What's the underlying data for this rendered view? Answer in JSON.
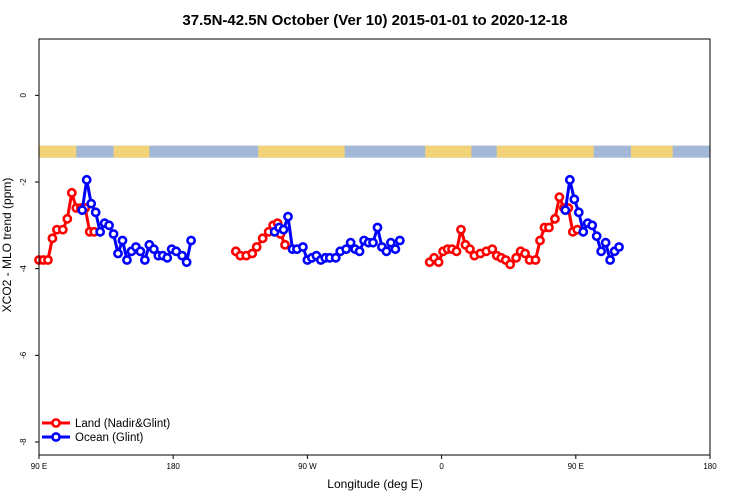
{
  "chart_data": {
    "type": "line",
    "title": "37.5N-42.5N October (Ver 10)   2015-01-01 to 2020-12-18",
    "xlabel": "Longitude (deg E)",
    "ylabel": "XCO2 - MLO trend (ppm)",
    "xlim": [
      90,
      540
    ],
    "ylim": [
      -8.3,
      1.3
    ],
    "x_ticks": [
      {
        "value": 90,
        "label": "90 E"
      },
      {
        "value": 180,
        "label": "180"
      },
      {
        "value": 270,
        "label": "90 W"
      },
      {
        "value": 360,
        "label": "0"
      },
      {
        "value": 450,
        "label": "90 E"
      },
      {
        "value": 540,
        "label": "180"
      }
    ],
    "y_ticks": [
      {
        "value": 0,
        "label": "0"
      },
      {
        "value": -2,
        "label": "-2"
      },
      {
        "value": -4,
        "label": "-4"
      },
      {
        "value": -6,
        "label": "-6"
      },
      {
        "value": -8,
        "label": "-8"
      }
    ],
    "land_band": {
      "y": -1.3,
      "land_color": "#f2d37a",
      "ocean_color": "#a3b7d6",
      "land_segments": [
        [
          90,
          115
        ],
        [
          140,
          164
        ],
        [
          237,
          295
        ],
        [
          349,
          380
        ],
        [
          397,
          462
        ],
        [
          487,
          515
        ]
      ]
    },
    "legend_position": "bottom-left",
    "series": [
      {
        "name": "Land (Nadir&Glint)",
        "color": "#ff0000",
        "segments": [
          [
            [
              90,
              -3.8
            ],
            [
              93,
              -3.8
            ],
            [
              96,
              -3.8
            ],
            [
              99,
              -3.3
            ],
            [
              102,
              -3.1
            ],
            [
              106,
              -3.1
            ],
            [
              109,
              -2.85
            ],
            [
              112,
              -2.25
            ],
            [
              115,
              -2.6
            ],
            [
              118,
              -2.6
            ],
            [
              121,
              -2.6
            ],
            [
              124,
              -3.15
            ],
            [
              127,
              -3.15
            ]
          ],
          [
            [
              222,
              -3.6
            ],
            [
              225,
              -3.7
            ],
            [
              229,
              -3.7
            ],
            [
              233,
              -3.65
            ],
            [
              236,
              -3.5
            ],
            [
              240,
              -3.3
            ],
            [
              244,
              -3.15
            ],
            [
              247,
              -3.0
            ],
            [
              250,
              -2.95
            ],
            [
              252,
              -3.2
            ],
            [
              255,
              -3.45
            ]
          ],
          [
            [
              352,
              -3.85
            ],
            [
              355,
              -3.75
            ],
            [
              358,
              -3.85
            ],
            [
              361,
              -3.6
            ],
            [
              364,
              -3.55
            ],
            [
              367,
              -3.55
            ],
            [
              370,
              -3.6
            ],
            [
              373,
              -3.1
            ],
            [
              376,
              -3.45
            ],
            [
              379,
              -3.55
            ],
            [
              382,
              -3.7
            ],
            [
              386,
              -3.65
            ],
            [
              390,
              -3.6
            ],
            [
              394,
              -3.55
            ],
            [
              397,
              -3.7
            ],
            [
              400,
              -3.75
            ],
            [
              403,
              -3.8
            ],
            [
              406,
              -3.9
            ],
            [
              410,
              -3.75
            ],
            [
              413,
              -3.6
            ],
            [
              416,
              -3.65
            ],
            [
              419,
              -3.8
            ],
            [
              423,
              -3.8
            ],
            [
              426,
              -3.35
            ],
            [
              429,
              -3.05
            ],
            [
              432,
              -3.05
            ],
            [
              436,
              -2.85
            ],
            [
              439,
              -2.35
            ],
            [
              442,
              -2.6
            ],
            [
              445,
              -2.6
            ],
            [
              448,
              -3.15
            ],
            [
              451,
              -3.1
            ]
          ]
        ]
      },
      {
        "name": "Ocean (Glint)",
        "color": "#0000ff",
        "segments": [
          [
            [
              119,
              -2.65
            ],
            [
              122,
              -1.95
            ],
            [
              125,
              -2.5
            ],
            [
              128,
              -2.7
            ],
            [
              131,
              -3.15
            ],
            [
              134,
              -2.95
            ],
            [
              137,
              -3.0
            ],
            [
              140,
              -3.2
            ],
            [
              143,
              -3.65
            ],
            [
              146,
              -3.35
            ],
            [
              149,
              -3.8
            ],
            [
              152,
              -3.6
            ],
            [
              155,
              -3.5
            ],
            [
              158,
              -3.6
            ],
            [
              161,
              -3.8
            ],
            [
              164,
              -3.45
            ],
            [
              167,
              -3.55
            ],
            [
              170,
              -3.7
            ],
            [
              173,
              -3.7
            ],
            [
              176,
              -3.75
            ],
            [
              179,
              -3.55
            ],
            [
              182,
              -3.6
            ],
            [
              186,
              -3.7
            ],
            [
              189,
              -3.85
            ],
            [
              192,
              -3.35
            ]
          ],
          [
            [
              248,
              -3.15
            ],
            [
              251,
              -3.05
            ],
            [
              254,
              -3.1
            ],
            [
              257,
              -2.8
            ],
            [
              260,
              -3.55
            ],
            [
              263,
              -3.55
            ],
            [
              267,
              -3.5
            ],
            [
              270,
              -3.8
            ],
            [
              273,
              -3.75
            ],
            [
              276,
              -3.7
            ],
            [
              279,
              -3.8
            ],
            [
              282,
              -3.75
            ],
            [
              285,
              -3.75
            ],
            [
              289,
              -3.75
            ],
            [
              292,
              -3.6
            ],
            [
              296,
              -3.55
            ],
            [
              299,
              -3.4
            ],
            [
              302,
              -3.55
            ],
            [
              305,
              -3.6
            ],
            [
              308,
              -3.35
            ],
            [
              311,
              -3.4
            ],
            [
              314,
              -3.4
            ],
            [
              317,
              -3.05
            ],
            [
              320,
              -3.5
            ],
            [
              323,
              -3.6
            ],
            [
              326,
              -3.4
            ],
            [
              329,
              -3.55
            ],
            [
              332,
              -3.35
            ]
          ],
          [
            [
              443,
              -2.65
            ],
            [
              446,
              -1.95
            ],
            [
              449,
              -2.4
            ],
            [
              452,
              -2.7
            ],
            [
              455,
              -3.15
            ],
            [
              458,
              -2.95
            ],
            [
              461,
              -3.0
            ],
            [
              464,
              -3.25
            ],
            [
              467,
              -3.6
            ],
            [
              470,
              -3.4
            ],
            [
              473,
              -3.8
            ],
            [
              476,
              -3.6
            ],
            [
              479,
              -3.5
            ]
          ]
        ]
      }
    ]
  }
}
